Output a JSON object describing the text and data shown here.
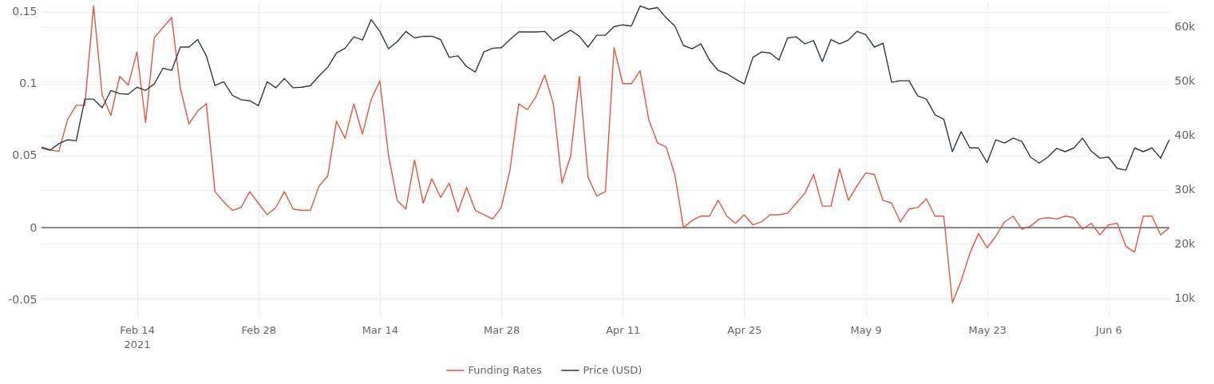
{
  "chart_data": {
    "type": "line",
    "x": [
      "2021-02-03",
      "2021-02-04",
      "2021-02-05",
      "2021-02-06",
      "2021-02-07",
      "2021-02-08",
      "2021-02-09",
      "2021-02-10",
      "2021-02-11",
      "2021-02-12",
      "2021-02-13",
      "2021-02-14",
      "2021-02-15",
      "2021-02-16",
      "2021-02-17",
      "2021-02-18",
      "2021-02-19",
      "2021-02-20",
      "2021-02-21",
      "2021-02-22",
      "2021-02-23",
      "2021-02-24",
      "2021-02-25",
      "2021-02-26",
      "2021-02-27",
      "2021-02-28",
      "2021-03-01",
      "2021-03-02",
      "2021-03-03",
      "2021-03-04",
      "2021-03-05",
      "2021-03-06",
      "2021-03-07",
      "2021-03-08",
      "2021-03-09",
      "2021-03-10",
      "2021-03-11",
      "2021-03-12",
      "2021-03-13",
      "2021-03-14",
      "2021-03-15",
      "2021-03-16",
      "2021-03-17",
      "2021-03-18",
      "2021-03-19",
      "2021-03-20",
      "2021-03-21",
      "2021-03-22",
      "2021-03-23",
      "2021-03-24",
      "2021-03-25",
      "2021-03-26",
      "2021-03-27",
      "2021-03-28",
      "2021-03-29",
      "2021-03-30",
      "2021-03-31",
      "2021-04-01",
      "2021-04-02",
      "2021-04-03",
      "2021-04-04",
      "2021-04-05",
      "2021-04-06",
      "2021-04-07",
      "2021-04-08",
      "2021-04-09",
      "2021-04-10",
      "2021-04-11",
      "2021-04-12",
      "2021-04-13",
      "2021-04-14",
      "2021-04-15",
      "2021-04-16",
      "2021-04-17",
      "2021-04-18",
      "2021-04-19",
      "2021-04-20",
      "2021-04-21",
      "2021-04-22",
      "2021-04-23",
      "2021-04-24",
      "2021-04-25",
      "2021-04-26",
      "2021-04-27",
      "2021-04-28",
      "2021-04-29",
      "2021-04-30",
      "2021-05-01",
      "2021-05-02",
      "2021-05-03",
      "2021-05-04",
      "2021-05-05",
      "2021-05-06",
      "2021-05-07",
      "2021-05-08",
      "2021-05-09",
      "2021-05-10",
      "2021-05-11",
      "2021-05-12",
      "2021-05-13",
      "2021-05-14",
      "2021-05-15",
      "2021-05-16",
      "2021-05-17",
      "2021-05-18",
      "2021-05-19",
      "2021-05-20",
      "2021-05-21",
      "2021-05-22",
      "2021-05-23",
      "2021-05-24",
      "2021-05-25",
      "2021-05-26",
      "2021-05-27",
      "2021-05-28",
      "2021-05-29",
      "2021-05-30",
      "2021-05-31",
      "2021-06-01",
      "2021-06-02",
      "2021-06-03",
      "2021-06-04",
      "2021-06-05",
      "2021-06-06",
      "2021-06-07",
      "2021-06-08",
      "2021-06-09",
      "2021-06-10",
      "2021-06-11",
      "2021-06-12",
      "2021-06-13"
    ],
    "series": [
      {
        "name": "Funding Rates",
        "color": "#e5553f",
        "values": [
          0.056,
          0.054,
          0.053,
          0.075,
          0.085,
          0.085,
          0.154,
          0.092,
          0.078,
          0.105,
          0.099,
          0.122,
          0.073,
          0.132,
          0.139,
          0.146,
          0.097,
          0.072,
          0.081,
          0.086,
          0.025,
          0.018,
          0.012,
          0.014,
          0.025,
          0.017,
          0.009,
          0.014,
          0.025,
          0.013,
          0.012,
          0.012,
          0.029,
          0.036,
          0.074,
          0.062,
          0.086,
          0.065,
          0.089,
          0.102,
          0.05,
          0.019,
          0.013,
          0.047,
          0.017,
          0.034,
          0.021,
          0.031,
          0.011,
          0.028,
          0.012,
          0.009,
          0.006,
          0.014,
          0.04,
          0.086,
          0.082,
          0.091,
          0.106,
          0.086,
          0.031,
          0.05,
          0.105,
          0.035,
          0.022,
          0.025,
          0.125,
          0.1,
          0.1,
          0.109,
          0.075,
          0.059,
          0.056,
          0.037,
          0.0,
          0.005,
          0.008,
          0.008,
          0.019,
          0.008,
          0.003,
          0.009,
          0.002,
          0.004,
          0.009,
          0.009,
          0.01,
          0.017,
          0.024,
          0.037,
          0.015,
          0.015,
          0.041,
          0.019,
          0.029,
          0.038,
          0.037,
          0.019,
          0.017,
          0.004,
          0.013,
          0.014,
          0.02,
          0.008,
          0.008,
          -0.052,
          -0.037,
          -0.018,
          -0.004,
          -0.014,
          -0.006,
          0.004,
          0.008,
          -0.001,
          0.001,
          0.006,
          0.007,
          0.006,
          0.008,
          0.007,
          -0.001,
          0.003,
          -0.005,
          0.002,
          0.003,
          -0.013,
          -0.017,
          0.008,
          0.008,
          -0.005,
          0.0
        ]
      },
      {
        "name": "Price (USD)",
        "color": "#2f3a44",
        "axis": "y2",
        "values": [
          37700,
          37300,
          38500,
          39200,
          39000,
          46700,
          46700,
          45100,
          48300,
          47700,
          47600,
          48900,
          48300,
          49500,
          52400,
          52000,
          56300,
          56300,
          57700,
          54700,
          49200,
          49900,
          47400,
          46600,
          46400,
          45500,
          49900,
          48800,
          50500,
          48800,
          48900,
          49200,
          51000,
          52600,
          55200,
          56100,
          58200,
          57600,
          61400,
          59200,
          56000,
          57300,
          59200,
          58000,
          58300,
          58300,
          57700,
          54400,
          54700,
          52700,
          51700,
          55400,
          56100,
          56200,
          57700,
          59100,
          59100,
          59100,
          59200,
          57500,
          58500,
          59400,
          58300,
          56300,
          58500,
          58500,
          60100,
          60400,
          60200,
          63900,
          63300,
          63600,
          61700,
          60200,
          56600,
          56000,
          56900,
          53900,
          52000,
          51400,
          50400,
          49500,
          54400,
          55400,
          55200,
          53900,
          58000,
          58200,
          56900,
          57500,
          53600,
          57700,
          56900,
          57600,
          59200,
          58600,
          56300,
          57000,
          49800,
          50100,
          50100,
          47300,
          46700,
          43800,
          43000,
          37000,
          40700,
          37700,
          37700,
          35000,
          39200,
          38600,
          39500,
          38900,
          36000,
          34900,
          36000,
          37600,
          37000,
          37700,
          39500,
          37100,
          35800,
          36000,
          33900,
          33600,
          37700,
          37000,
          37700,
          35800,
          39200
        ]
      }
    ],
    "xlim": [
      "2021-02-03",
      "2021-06-13"
    ],
    "xticks": [
      {
        "value": "2021-02-14",
        "label": "Feb 14\n2021"
      },
      {
        "value": "2021-02-28",
        "label": "Feb 28"
      },
      {
        "value": "2021-03-14",
        "label": "Mar 14"
      },
      {
        "value": "2021-03-28",
        "label": "Mar 28"
      },
      {
        "value": "2021-04-11",
        "label": "Apr 11"
      },
      {
        "value": "2021-04-25",
        "label": "Apr 25"
      },
      {
        "value": "2021-05-09",
        "label": "May 9"
      },
      {
        "value": "2021-05-23",
        "label": "May 23"
      },
      {
        "value": "2021-06-06",
        "label": "Jun 6"
      }
    ],
    "ylim": [
      -0.062,
      0.157
    ],
    "yticks": [
      -0.05,
      0,
      0.05,
      0.1,
      0.15
    ],
    "y2lim": [
      6500,
      64700
    ],
    "y2ticks": [
      {
        "value": 10000,
        "label": "10k"
      },
      {
        "value": 20000,
        "label": "20k"
      },
      {
        "value": 30000,
        "label": "30k"
      },
      {
        "value": 40000,
        "label": "40k"
      },
      {
        "value": 50000,
        "label": "50k"
      },
      {
        "value": 60000,
        "label": "60k"
      }
    ],
    "ref_lines": [
      {
        "axis": "y",
        "value": 0,
        "color": "#444444"
      }
    ],
    "grid": true,
    "legend": "bottom"
  }
}
